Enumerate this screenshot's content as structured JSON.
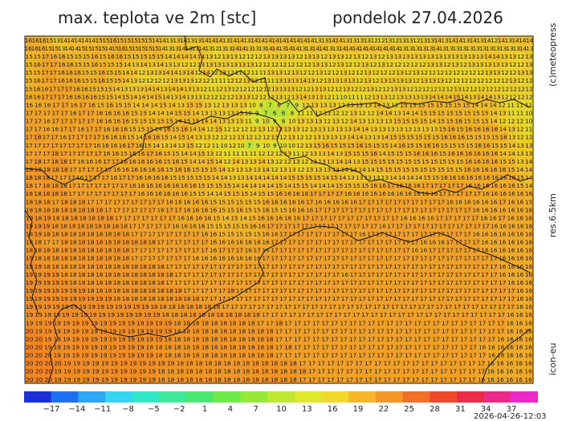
{
  "header": {
    "title_left": "max. teplota ve 2m [stc]",
    "title_right": "pondelok 27.04.2026"
  },
  "side": {
    "brand": "(c)meteopress",
    "resolution": "res.6.5km",
    "model": "icon-eu"
  },
  "footer": {
    "timestamp": "2026-04-26-12:03"
  },
  "map": {
    "grid_rows": [
      "16 16 16 15 13 14 14 14 14 14 15 15 16 15 15 15 15 15 14 14 13 13 14 13 13 14 14 14 13 14 14 13 14 14 14 14 14 14 14 14 14 13 13 14 14 13 13 13 13 12 12 13 12 13 13 12 13 13 14 13 14 14 13 14 13 14 12 14 13 14 14 14",
      "16 16 16 15 15 13 14 14 15 15 15 15 14 15 16 15 15 15 15 15 14 13 13 14 13 13 14 13 12 13 13 14 14 13 13 13 14 14 13 14 14 13 13 14 14 13 13 14 14 14 14 14 14 14 14 14 13 13 13 13 13 14 13 13 13 13 13 13 13 13 13 13 13 13 14 13",
      "15 15 17 16 16 15 15 15 16 15 16 16 15 15 15 15 15 14 14 14 14 14 13 12 13 13 12 12 12 13 13 13 13 12 13 13 12 13 13 12 13 12 13 12 13 13 13 13 13 13 13 13 13 13 13 13 14 14 13 13 12 13",
      "15 16 17 17 16 16 15 15 16 15 15 15 14 13 14 13 14 13 13 12 12 13 13 13 13 13 13 13 12 12 12 12 12 12 12 13 13 12 13 12 12 13 12 13 12 12 12 12 12 13 13 12 13 12 13 13 13 13 13 12 12 13",
      "15 15 17 17 16 16 16 15 15 16 15 15 14 14 12 13 13 14 14 13 14 12 14 12 13 12 11 12 11 11 13 13 12 13 12 12 13 12 12 13 12 12 13 12 12 12 13 12 13 12 12 12 12 12 12 12 12 13 13 12 12 13 13",
      "15 16 17 17 16 16 16 15 15 16 15 15 14 13 12 12 12 12 13 13 13 12 12 11 11 12 12 13 12 12 11 13 13 13 14 13 12 13 13 13 13 12 13 12 13 13 13 13 12 13 13 13 12 12 12 12 12 12 12 12 13 12 12",
      "15 16 16 17 17 17 16 16 15 15 15 14 13 13 13 14 14 13 14 14 13 13 12 11 12 13 12 12 12 12 12 13 13 13 12 12 13 13 12 12 13 12 12 13 12 12 13 13 12 12 12 12 12 12 13 12 12 12 12 12 12 12 12 12",
      "16 16 17 17 17 16 16 16 16 15 15 14 15 14 14 14 15 14 13 14 13 13 12 12 12 12 13 13 12 12 12 13 12 13 14 13 13 12 11 10 11 11 12 13 13 12 13 13 13 13 14 14 14 15 14 13 14 14 13 12 12 12 12",
      "16 16 16 17 17 16 17 16 15 16 15 15 14 14 14 15 14 13 15 15 13 12 13 13 13 10 8 7 8 7 9 12 13 13 13 12 13 13 13 14 13 12 15 15 15 15 15 15 15 15 14 14 14 12 11 11 11",
      "17 17 17 17 17 16 17 17 16 16 16 16 15 15 14 14 14 15 15 14 13 13 13 13 13 10 9 7 6 6 8 11 11 12 13 12 12 13 12 12 14 14 13 14 14 15 15 15 15 15 15 15 15 14 13 11 11 10",
      "17 17 16 17 17 17 17 17 16 16 16 16 15 15 15 15 15 14 15 15 14 14 13 13 13 11 9 10 9 8 10 13 13 13 12 13 12 14 13 13 13 13 15 15 15 15 14 15 15 16 15 15 15 14 12 12 12 10",
      "17 17 16 16 17 17 16 17 17 16 16 16 15 15 15 14 16 15 16 14 14 12 15 12 12 12 12 13 12 13 13 13 12 13 13 13 13 13 14 14 13 13 13 13 13 13 13 13 15 16 15 16 16 16 16 14 13 12 11",
      "17 18 17 17 16 17 17 17 17 16 16 16 15 14 16 16 15 14 15 14 13 13 12 12 12 13 12 12 12 13 12 13 12 12 13 13 13 13 14 14 13 13 14 15 15 15 15 15 15 16 16 16 15 15 15 15 16 13 12 12",
      "17 17 17 17 17 17 17 17 16 16 16 16 17 16 15 14 13 14 13 15 12 12 11 10 12 10 7 9 10 9 10 10 12 13 15 16 15 15 15 16 15 15 15 14 16 15 15 16 16 15 15 15 15 16 16 15 15 14 13 13",
      "17 17 17 18 17 17 17 17 17 16 16 15 16 16 17 16 15 15 14 14 15 13 12 11 11 11 11 12 12 12 13 11 12 13 13 14 13 15 15 15 16 14 15 15 15 16 16 16 15 16 16 16 16 16 16 14 14 13 13",
      "17 18 17 18 18 17 16 16 16 17 17 16 16 16 16 16 15 16 15 14 14 15 14 12 14 13 13 14 13 12 12 13 12 13 13 13 14 14 13 15 15 15 15 15 15 15 15 15 15 15 15 16 16 16 16 15 15 13 14",
      "18 18 18 18 18 17 17 17 17 17 16 16 16 16 16 16 15 16 16 15 15 15 14 13 13 13 13 14 12 13 13 12 13 13 13 14 14 14 14 14 15 15 15 15 15 15 15 15 15 15 16 16 16 16 16 15 14 14",
      "18 18 18 17 17 17 16 17 17 17 16 17 17 16 16 16 16 15 15 15 15 15 14 14 13 13 14 14 14 14 14 15 15 15 15 14 15 14 13 13 13 13 13 14 14 14 14 15 15 16 16 16 16 16 16 16 16 16 15 14",
      "18 17 18 18 18 17 17 17 17 17 17 17 16 16 16 16 16 16 16 16 15 15 15 15 14 14 14 14 14 15 14 15 15 14 14 14 15 15 15 15 16 16 17 16 16 16 17 17 17 17 17 16 16 16 16 16 16 15 14",
      "18 18 18 18 18 17 17 17 17 17 17 17 17 16 16 16 16 16 16 15 15 14 14 15 15 15 14 15 15 16 16 16 16 17 17 17 17 16 16 16 16 16 16 16 16 16 16 16 17 17 17 17 17 16 16 16 16 16 16",
      "18 18 18 17 18 18 18 17 17 17 17 17 17 17 17 17 16 16 16 16 16 15 15 15 15 15 15 16 16 16 16 16 17 16 16 16 16 16 17 17 17 17 17 17 17 17 17 17 16 16 16 16 16 16 17 16 16 15",
      "18 18 18 18 18 18 18 18 18 17 17 17 17 17 17 16 17 17 16 16 16 16 15 15 16 15 15 16 15 15 16 16 16 17 17 17 17 17 17 17 17 17 17 17 17 17 17 17 17 17 17 16 16 16 16 16 16 16",
      "19 18 19 18 18 18 18 18 18 18 17 17 17 17 17 17 17 16 16 16 16 15 14 15 14 15 16 16 16 16 16 17 17 17 17 17 17 17 17 17 17 17 16 16 16 16 17 17 17 17 17 16 16 17 16 16 16",
      "19 19 19 18 18 18 18 18 18 18 18 18 17 17 17 17 17 16 16 16 16 15 15 15 15 15 16 16 17 17 17 17 17 17 17 17 17 17 17 17 17 16 17 17 17 17 17 17 17 17 17 17 17 17 16 16 16 16 16",
      "18 19 18 18 18 18 18 18 18 18 18 18 17 17 17 17 17 17 17 17 16 16 15 15 15 15 15 16 16 17 17 17 17 17 17 17 17 17 16 17 17 17 17 17 17 17 17 17 17 17 17 16 16 16 16 16 16 16",
      "18 18 17 17 18 18 18 18 18 18 18 18 18 18 18 17 17 17 17 17 17 16 16 16 16 16 16 16 17 17 17 17 17 17 17 17 17 17 17 17 17 17 17 17 17 16 16 16 17 17 17 17 16 16 16 16 16 16",
      "18 18 18 18 18 18 18 18 18 18 18 18 17 17 17 17 17 17 17 17 17 16 17 17 17 16 17 16 17 17 17 17 17 17 17 17 17 17 17 17 17 17 17 17 16 16 17 17 17 17 17 17 16 16 16 16 16 16",
      "19 18 18 18 18 18 18 18 18 18 18 18 17 17 17 17 17 17 17 16 16 16 16 16 16 16 16 17 17 17 17 17 17 17 17 17 17 17 17 17 17 17 17 17 17 17 17 17 17 17 17 17 17 17 16 16 16 16",
      "19 19 18 18 18 18 18 18 18 18 18 18 18 18 18 18 17 17 17 17 17 17 17 17 17 17 17 17 17 17 17 17 17 17 17 17 17 17 17 17 17 17 17 17 17 17 17 17 17 17 17 17 17 17 16 16 16 16",
      "19 19 19 19 18 18 18 18 18 18 18 18 18 18 18 18 18 17 17 17 17 17 17 17 17 17 17 17 17 17 17 17 17 17 17 17 16 17 17 17 17 17 17 17 17 17 17 17 17 17 17 17 17 17 16 16 16 16",
      "19 19 19 19 19 18 18 18 18 18 18 18 18 18 18 18 17 17 17 17 17 17 17 17 17 17 17 17 17 17 17 17 17 17 17 17 17 17 17 17 17 17 17 17 17 17 17 17 17 17 17 17 17 17 17 16 16 16",
      "19 19 19 19 19 19 19 18 18 18 18 18 18 18 18 18 18 18 17 17 17 17 17 18 17 17 17 17 17 17 17 17 17 17 17 17 17 17 17 17 17 17 17 17 17 17 17 17 17 17 17 17 17 17 17 17 16 16",
      "19 19 19 19 19 19 19 19 19 19 18 18 18 18 18 18 18 18 18 18 17 17 17 17 17 17 17 17 17 17 17 17 17 17 17 17 17 17 17 17 17 17 17 17 17 17 17 17 17 17 17 17 17 17 17 17 16 16",
      "19 19 19 19 19 19 19 19 19 19 19 19 19 19 18 18 18 18 18 18 18 18 17 17 17 17 17 17 17 17 17 17 17 17 17 17 17 17 17 17 17 17 17 17 17 17 17 17 17 17 17 17 17 17 17 16 16",
      "19 19 19 19 19 19 19 19 19 19 19 19 19 19 19 18 18 18 18 18 18 18 18 18 18 18 17 17 17 17 17 17 17 17 17 17 17 17 17 17 17 17 17 17 17 17 17 17 17 17 17 17 17 16 16 16",
      "19 19 19 19 19 19 19 19 19 19 19 19 19 19 19 19 18 18 18 18 18 18 18 18 18 17 17 18 17 17 17 17 17 17 17 17 17 17 17 17 17 17 17 17 17 17 17 17 17 17 17 17 16 16 16",
      "20 19 19 19 19 19 19 19 19 19 19 19 19 19 19 19 18 18 18 18 18 18 18 18 18 18 18 17 17 17 17 17 17 17 17 17 17 17 17 17 17 17 17 17 17 17 17 17 17 17 17 17 16 16 16",
      "20 20 19 19 19 19 19 19 19 19 19 19 19 19 19 18 18 18 18 18 18 18 18 18 18 18 18 17 17 17 17 17 17 17 17 17 17 17 17 17 17 17 17 17 17 17 17 17 17 17 17 16 16 16 16",
      "20 20 19 19 19 19 19 19 19 19 19 19 19 18 18 18 18 18 18 18 18 18 18 18 18 18 18 17 18 17 17 17 17 17 17 17 17 17 17 17 17 17 17 17 17 17 17 17 17 16 16 16 16 16 16",
      "20 20 20 19 19 19 19 19 19 19 19 19 19 19 18 18 18 18 18 18 18 18 18 18 18 18 18 17 17 17 17 17 17 17 17 17 17 17 17 17 17 17 17 17 17 17 17 17 17 17 16 16 16 16 16",
      "20 20 20 20 19 19 19 19 19 19 19 19 19 19 19 19 18 18 18 18 18 18 18 18 18 18 18 18 18 17 17 17 17 17 17 17 17 17 17 17 17 17 17 17 17 17 17 17 17 16 16 16 16 16",
      "20 20 20 19 19 19 19 19 19 19 19 19 19 19 18 18 18 18 18 18 18 18 18 18 18 18 18 18 18 18 17 17 17 17 17 17 17 17 17 17 17 17 17 17 17 17 17 17 17 16 16 16 16 16",
      "20 20 20 19 19 19 19 19 19 19 19 19 19 19 18 18 18 18 18 18 18 18 18 18 18 18 18 18 18 17 17 17 17 17 17 17 17 17 17 17 17 17 17 17 17 17 17 17 16 16 16 16 16 16"
    ]
  },
  "legend": {
    "ticks": [
      "−17",
      "−14",
      "−11",
      "−8",
      "−5",
      "−2",
      "1",
      "4",
      "7",
      "10",
      "13",
      "16",
      "19",
      "22",
      "25",
      "28",
      "31",
      "34",
      "37"
    ],
    "colors": [
      "#1a2fd8",
      "#1f6ff0",
      "#2ea8f5",
      "#34d6f0",
      "#33e8c8",
      "#3fe89a",
      "#4ee870",
      "#6fe84a",
      "#98e83a",
      "#c0e830",
      "#e0e82a",
      "#f2d82a",
      "#f5b82a",
      "#f5962a",
      "#f3702a",
      "#ef4a2a",
      "#ec2a4a",
      "#ec2a8a",
      "#ec2ac8"
    ]
  }
}
